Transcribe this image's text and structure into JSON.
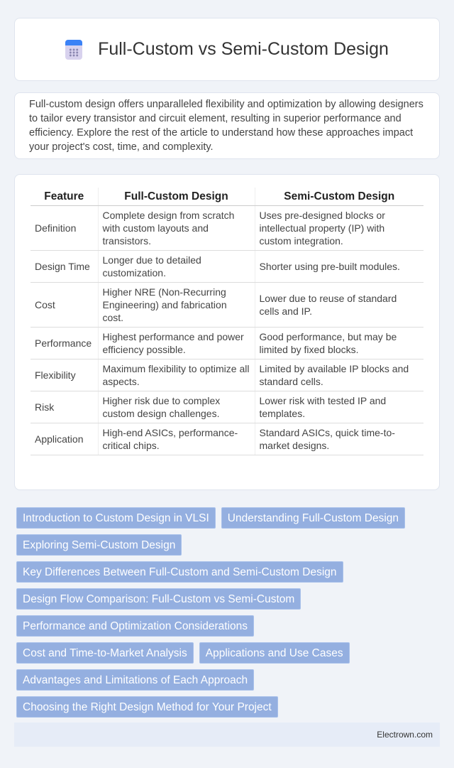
{
  "header": {
    "title": "Full-Custom vs Semi-Custom Design",
    "icon": "calendar-icon"
  },
  "intro": "Full-custom design offers unparalleled flexibility and optimization by allowing designers to tailor every transistor and circuit element, resulting in superior performance and efficiency. Explore the rest of the article to understand how these approaches impact your project's cost, time, and complexity.",
  "table": {
    "headers": [
      "Feature",
      "Full-Custom Design",
      "Semi-Custom Design"
    ],
    "rows": [
      [
        "Definition",
        "Complete design from scratch with custom layouts and transistors.",
        "Uses pre-designed blocks or intellectual property (IP) with custom integration."
      ],
      [
        "Design Time",
        "Longer due to detailed customization.",
        "Shorter using pre-built modules."
      ],
      [
        "Cost",
        "Higher NRE (Non-Recurring Engineering) and fabrication cost.",
        "Lower due to reuse of standard cells and IP."
      ],
      [
        "Performance",
        "Highest performance and power efficiency possible.",
        "Good performance, but may be limited by fixed blocks."
      ],
      [
        "Flexibility",
        "Maximum flexibility to optimize all aspects.",
        "Limited by available IP blocks and standard cells."
      ],
      [
        "Risk",
        "Higher risk due to complex custom design challenges.",
        "Lower risk with tested IP and templates."
      ],
      [
        "Application",
        "High-end ASICs, performance-critical chips.",
        "Standard ASICs, quick time-to-market designs."
      ]
    ]
  },
  "tags": [
    "Introduction to Custom Design in VLSI",
    "Understanding Full-Custom Design",
    "Exploring Semi-Custom Design",
    "Key Differences Between Full-Custom and Semi-Custom Design",
    "Design Flow Comparison: Full-Custom vs Semi-Custom",
    "Performance and Optimization Considerations",
    "Cost and Time-to-Market Analysis",
    "Applications and Use Cases",
    "Advantages and Limitations of Each Approach",
    "Choosing the Right Design Method for Your Project"
  ],
  "footer": "Electrown.com",
  "colors": {
    "tag": "#94afe0",
    "background": "#f0f3f8"
  }
}
